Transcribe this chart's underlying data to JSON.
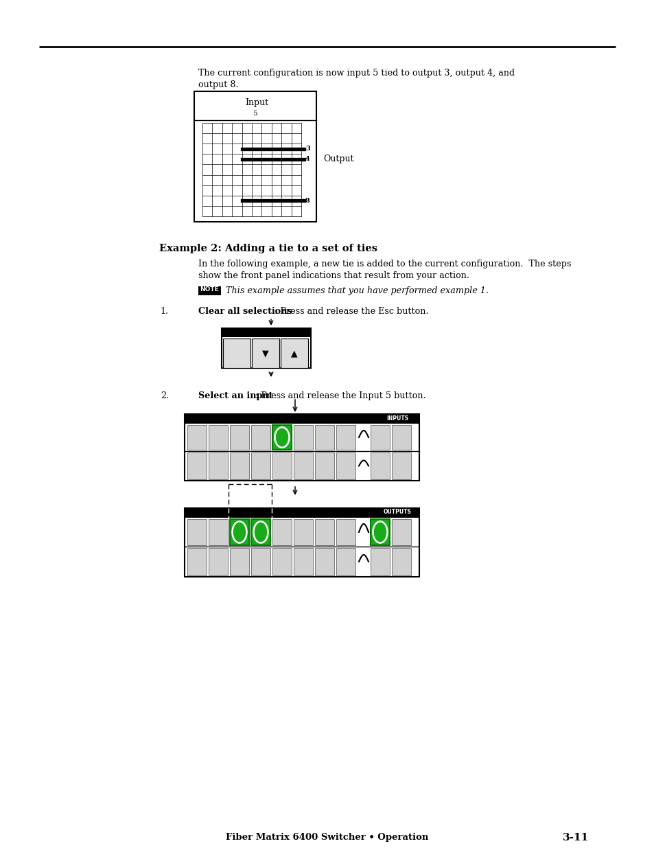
{
  "page_bg": "#ffffff",
  "footer_text": "Fiber Matrix 6400 Switcher • Operation",
  "footer_bold": "3-11",
  "para1_line1": "The current configuration is now input 5 tied to output 3, output 4, and",
  "para1_line2": "output 8.",
  "example2_title": "Example 2: Adding a tie to a set of ties",
  "example2_body1": "In the following example, a new tie is added to the current configuration.  The steps",
  "example2_body2": "show the front panel indications that result from your action.",
  "note_text": "This example assumes that you have performed example 1.",
  "step1_bold": "Clear all selections",
  "step1_rest": ": Press and release the Esc button.",
  "step2_bold": "Select an input",
  "step2_rest": ": Press and release the Input 5 button.",
  "green": "#1aaa1a",
  "green_dark": "#0d7a0d",
  "black": "#000000",
  "gray_btn": "#d0d0d0",
  "white": "#ffffff"
}
